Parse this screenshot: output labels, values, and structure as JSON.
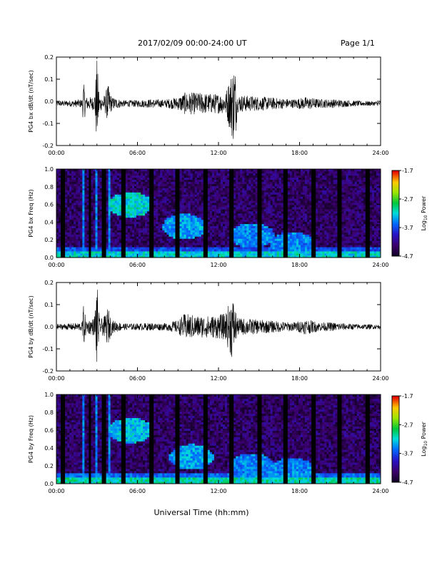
{
  "header": {
    "title": "2017/02/09  00:00-24:00 UT",
    "page": "Page 1/1"
  },
  "xaxis_title": "Universal Time (hh:mm)",
  "colors": {
    "trace": "#000000",
    "axis": "#000000"
  },
  "chart_data": [
    {
      "type": "line",
      "ylabel": "PG4 bx dB/dt (nT/sec)",
      "xlim": [
        0,
        24
      ],
      "ylim": [
        -0.2,
        0.2
      ],
      "x_ticks": [
        "00:00",
        "06:00",
        "12:00",
        "18:00",
        "24:00"
      ],
      "y_ticks": [
        "-0.2",
        "-0.1",
        "0.0",
        "0.1",
        "0.2"
      ],
      "baseline": -0.01,
      "envelope": [
        {
          "x": 0.0,
          "amp": 0.012
        },
        {
          "x": 1.0,
          "amp": 0.014
        },
        {
          "x": 1.9,
          "amp": 0.02
        },
        {
          "x": 2.0,
          "amp": 0.1
        },
        {
          "x": 2.2,
          "amp": 0.03
        },
        {
          "x": 2.8,
          "amp": 0.03
        },
        {
          "x": 3.0,
          "amp": 0.2
        },
        {
          "x": 3.2,
          "amp": 0.03
        },
        {
          "x": 3.6,
          "amp": 0.04
        },
        {
          "x": 3.8,
          "amp": 0.09
        },
        {
          "x": 4.1,
          "amp": 0.03
        },
        {
          "x": 5.0,
          "amp": 0.015
        },
        {
          "x": 6.0,
          "amp": 0.016
        },
        {
          "x": 7.0,
          "amp": 0.02
        },
        {
          "x": 8.0,
          "amp": 0.018
        },
        {
          "x": 9.0,
          "amp": 0.03
        },
        {
          "x": 9.5,
          "amp": 0.05
        },
        {
          "x": 10.5,
          "amp": 0.05
        },
        {
          "x": 11.5,
          "amp": 0.045
        },
        {
          "x": 12.5,
          "amp": 0.045
        },
        {
          "x": 13.2,
          "amp": 0.2
        },
        {
          "x": 13.4,
          "amp": 0.04
        },
        {
          "x": 14.5,
          "amp": 0.035
        },
        {
          "x": 15.5,
          "amp": 0.03
        },
        {
          "x": 16.5,
          "amp": 0.025
        },
        {
          "x": 17.5,
          "amp": 0.02
        },
        {
          "x": 18.5,
          "amp": 0.03
        },
        {
          "x": 19.5,
          "amp": 0.02
        },
        {
          "x": 20.5,
          "amp": 0.02
        },
        {
          "x": 21.5,
          "amp": 0.015
        },
        {
          "x": 22.5,
          "amp": 0.012
        },
        {
          "x": 24.0,
          "amp": 0.01
        }
      ]
    },
    {
      "type": "heatmap",
      "ylabel": "PG4 bx Freq (Hz)",
      "colorbar_label": "Log10 Power",
      "xlim": [
        0,
        24
      ],
      "ylim": [
        0.0,
        1.0
      ],
      "clim": [
        -4.7,
        -1.7
      ],
      "x_ticks": [
        "00:00",
        "06:00",
        "12:00",
        "18:00",
        "24:00"
      ],
      "y_ticks": [
        "0.0",
        "0.2",
        "0.4",
        "0.6",
        "0.8",
        "1.0"
      ],
      "cbar_ticks": [
        "-1.7",
        "-2.7",
        "-3.7",
        "-4.7"
      ],
      "background_level": -4.4,
      "low_freq_level": -3.2,
      "gaps_hours": [
        0.5,
        2.5,
        3.5,
        5.0,
        7.0,
        9.0,
        11.0,
        13.0,
        15.0,
        17.0,
        19.0,
        21.0,
        23.0
      ],
      "bright_bands_hours": [
        2.0,
        3.0,
        3.9
      ],
      "features": [
        {
          "x": 5.5,
          "f": 0.6,
          "level": -3.2
        },
        {
          "x": 9.5,
          "f": 0.35,
          "level": -3.4
        },
        {
          "x": 14.5,
          "f": 0.25,
          "level": -3.5
        },
        {
          "x": 17.5,
          "f": 0.15,
          "level": -3.5
        }
      ]
    },
    {
      "type": "line",
      "ylabel": "PG4 by dB/dt (nT/sec)",
      "xlim": [
        0,
        24
      ],
      "ylim": [
        -0.2,
        0.2
      ],
      "x_ticks": [
        "00:00",
        "06:00",
        "12:00",
        "18:00",
        "24:00"
      ],
      "y_ticks": [
        "-0.2",
        "-0.1",
        "0.0",
        "0.1",
        "0.2"
      ],
      "baseline": 0.0,
      "envelope": [
        {
          "x": 0.0,
          "amp": 0.012
        },
        {
          "x": 1.0,
          "amp": 0.015
        },
        {
          "x": 1.9,
          "amp": 0.02
        },
        {
          "x": 2.0,
          "amp": 0.1
        },
        {
          "x": 2.2,
          "amp": 0.03
        },
        {
          "x": 2.8,
          "amp": 0.04
        },
        {
          "x": 3.0,
          "amp": 0.2
        },
        {
          "x": 3.2,
          "amp": 0.03
        },
        {
          "x": 3.6,
          "amp": 0.05
        },
        {
          "x": 3.8,
          "amp": 0.09
        },
        {
          "x": 4.1,
          "amp": 0.03
        },
        {
          "x": 5.0,
          "amp": 0.015
        },
        {
          "x": 6.0,
          "amp": 0.015
        },
        {
          "x": 7.0,
          "amp": 0.018
        },
        {
          "x": 8.0,
          "amp": 0.016
        },
        {
          "x": 9.0,
          "amp": 0.03
        },
        {
          "x": 9.5,
          "amp": 0.06
        },
        {
          "x": 10.5,
          "amp": 0.05
        },
        {
          "x": 11.5,
          "amp": 0.05
        },
        {
          "x": 12.5,
          "amp": 0.06
        },
        {
          "x": 13.0,
          "amp": 0.15
        },
        {
          "x": 13.4,
          "amp": 0.04
        },
        {
          "x": 14.5,
          "amp": 0.035
        },
        {
          "x": 15.5,
          "amp": 0.03
        },
        {
          "x": 16.5,
          "amp": 0.025
        },
        {
          "x": 17.5,
          "amp": 0.02
        },
        {
          "x": 18.5,
          "amp": 0.035
        },
        {
          "x": 19.5,
          "amp": 0.02
        },
        {
          "x": 20.5,
          "amp": 0.02
        },
        {
          "x": 21.5,
          "amp": 0.015
        },
        {
          "x": 22.5,
          "amp": 0.012
        },
        {
          "x": 24.0,
          "amp": 0.01
        }
      ]
    },
    {
      "type": "heatmap",
      "ylabel": "PG4 by Freq (Hz)",
      "colorbar_label": "Log10 Power",
      "xlim": [
        0,
        24
      ],
      "ylim": [
        0.0,
        1.0
      ],
      "clim": [
        -4.7,
        -1.7
      ],
      "x_ticks": [
        "00:00",
        "06:00",
        "12:00",
        "18:00",
        "24:00"
      ],
      "y_ticks": [
        "0.0",
        "0.2",
        "0.4",
        "0.6",
        "0.8",
        "1.0"
      ],
      "cbar_ticks": [
        "-1.7",
        "-2.7",
        "-3.7",
        "-4.7"
      ],
      "background_level": -4.4,
      "low_freq_level": -3.1,
      "gaps_hours": [
        0.5,
        2.5,
        3.5,
        5.0,
        7.0,
        9.0,
        11.0,
        13.0,
        15.0,
        17.0,
        19.0,
        21.0,
        23.0
      ],
      "bright_bands_hours": [
        2.0,
        3.0,
        3.9
      ],
      "features": [
        {
          "x": 5.5,
          "f": 0.6,
          "level": -3.3
        },
        {
          "x": 10.0,
          "f": 0.3,
          "level": -3.4
        },
        {
          "x": 14.5,
          "f": 0.2,
          "level": -3.5
        },
        {
          "x": 17.5,
          "f": 0.15,
          "level": -3.5
        }
      ]
    }
  ]
}
